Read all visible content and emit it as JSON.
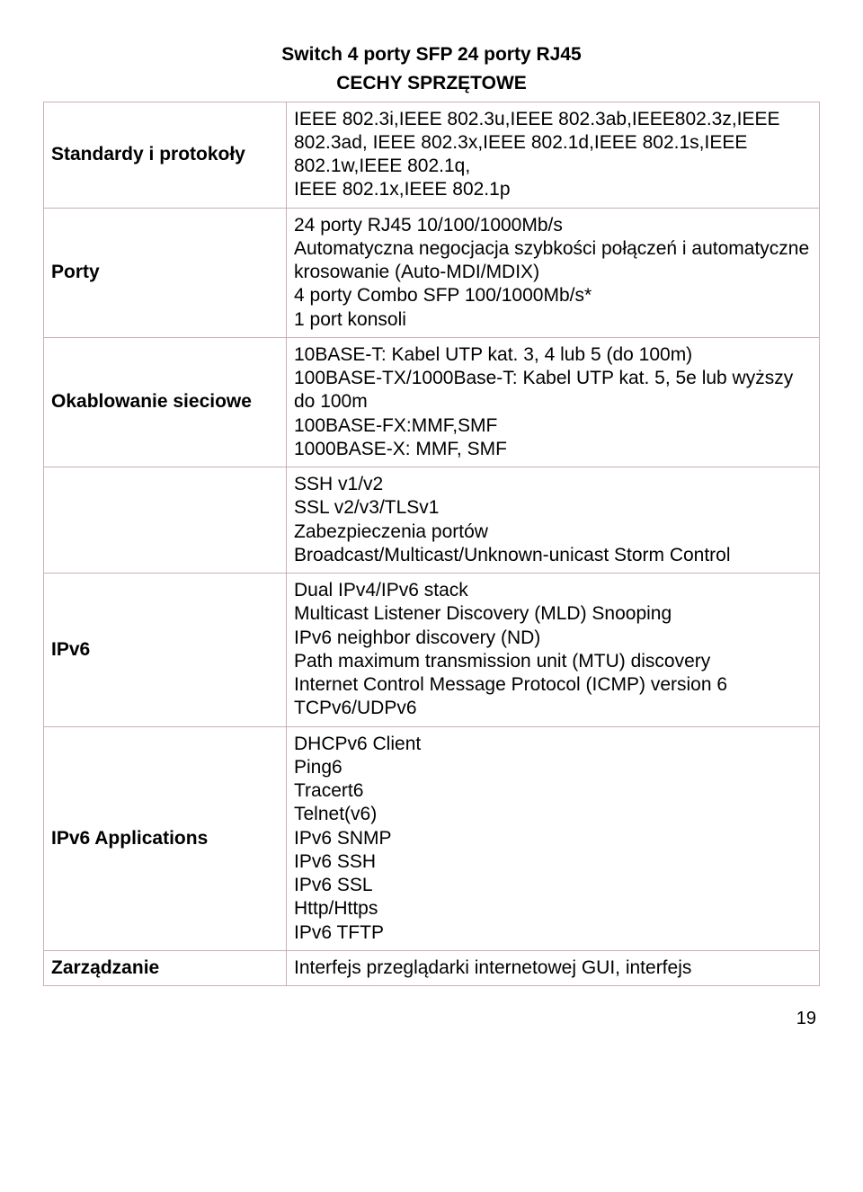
{
  "title_line1": "Switch 4 porty SFP 24 porty RJ45",
  "title_line2": "CECHY SPRZĘTOWE",
  "rows": [
    {
      "label": "Standardy i protokoły",
      "content": "IEEE 802.3i,IEEE 802.3u,IEEE 802.3ab,IEEE802.3z,IEEE 802.3ad, IEEE 802.3x,IEEE 802.1d,IEEE 802.1s,IEEE 802.1w,IEEE 802.1q,\nIEEE 802.1x,IEEE 802.1p"
    },
    {
      "label": "Porty",
      "content": "24 porty RJ45 10/100/1000Mb/s\nAutomatyczna negocjacja szybkości połączeń i automatyczne krosowanie (Auto-MDI/MDIX)\n4 porty Combo SFP 100/1000Mb/s*\n1 port konsoli"
    },
    {
      "label": "Okablowanie sieciowe",
      "content": "10BASE-T: Kabel UTP kat. 3, 4 lub 5 (do 100m)\n100BASE-TX/1000Base-T: Kabel UTP kat. 5, 5e lub wyższy\ndo 100m\n100BASE-FX:MMF,SMF\n1000BASE-X: MMF, SMF"
    },
    {
      "label": "",
      "content": "SSH v1/v2\nSSL v2/v3/TLSv1\nZabezpieczenia portów\nBroadcast/Multicast/Unknown-unicast Storm Control"
    },
    {
      "label": "IPv6",
      "content": "Dual IPv4/IPv6 stack\nMulticast Listener Discovery (MLD) Snooping\nIPv6 neighbor discovery (ND)\nPath maximum transmission unit (MTU) discovery\nInternet Control Message Protocol (ICMP) version 6\nTCPv6/UDPv6"
    },
    {
      "label": "IPv6 Applications",
      "content": "DHCPv6 Client\nPing6\nTracert6\nTelnet(v6)\nIPv6 SNMP\nIPv6 SSH\nIPv6 SSL\nHttp/Https\nIPv6 TFTP"
    },
    {
      "label": "Zarządzanie",
      "content": "Interfejs przeglądarki internetowej GUI, interfejs"
    }
  ],
  "page_number": "19",
  "colors": {
    "border": "#c9b0b0",
    "text": "#000000",
    "bg": "#ffffff"
  }
}
